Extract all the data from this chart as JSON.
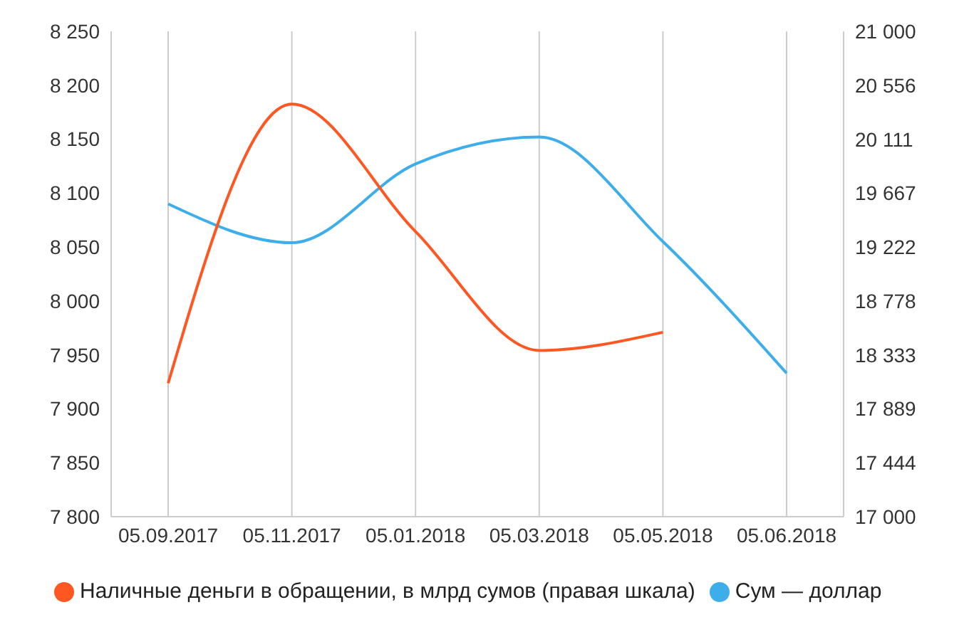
{
  "chart_data": {
    "type": "line",
    "categories": [
      "05.09.2017",
      "05.11.2017",
      "05.01.2018",
      "05.03.2018",
      "05.05.2018",
      "05.06.2018"
    ],
    "series": [
      {
        "name": "Сум — доллар",
        "color": "#3daee9",
        "values": [
          8090,
          8054,
          8127,
          8152,
          8055,
          7933
        ]
      },
      {
        "name": "Наличные деньги в обращении, в млрд сумов (правая шкала)",
        "color": "#ff5722",
        "axis": "y2",
        "values": [
          18100,
          20400,
          19350,
          18370,
          18520,
          null
        ]
      }
    ],
    "ylim": [
      7800,
      8250
    ],
    "yticks": [
      {
        "value": 7800,
        "label": "7 800"
      },
      {
        "value": 7850,
        "label": "7 850"
      },
      {
        "value": 7900,
        "label": "7 900"
      },
      {
        "value": 7950,
        "label": "7 950"
      },
      {
        "value": 8000,
        "label": "8 000"
      },
      {
        "value": 8050,
        "label": "8 050"
      },
      {
        "value": 8100,
        "label": "8 100"
      },
      {
        "value": 8150,
        "label": "8 150"
      },
      {
        "value": 8200,
        "label": "8 200"
      },
      {
        "value": 8250,
        "label": "8 250"
      }
    ],
    "y2lim": [
      17000,
      21000
    ],
    "y2ticks": [
      {
        "value": 17000,
        "label": "17 000"
      },
      {
        "value": 17444,
        "label": "17 444"
      },
      {
        "value": 17889,
        "label": "17 889"
      },
      {
        "value": 18333,
        "label": "18 333"
      },
      {
        "value": 18778,
        "label": "18 778"
      },
      {
        "value": 19222,
        "label": "19 222"
      },
      {
        "value": 19667,
        "label": "19 667"
      },
      {
        "value": 20111,
        "label": "20 111"
      },
      {
        "value": 20556,
        "label": "20 556"
      },
      {
        "value": 21000,
        "label": "21 000"
      }
    ],
    "grid": "x",
    "legend": "bottom left",
    "marker": "none",
    "line_style": "solid"
  }
}
